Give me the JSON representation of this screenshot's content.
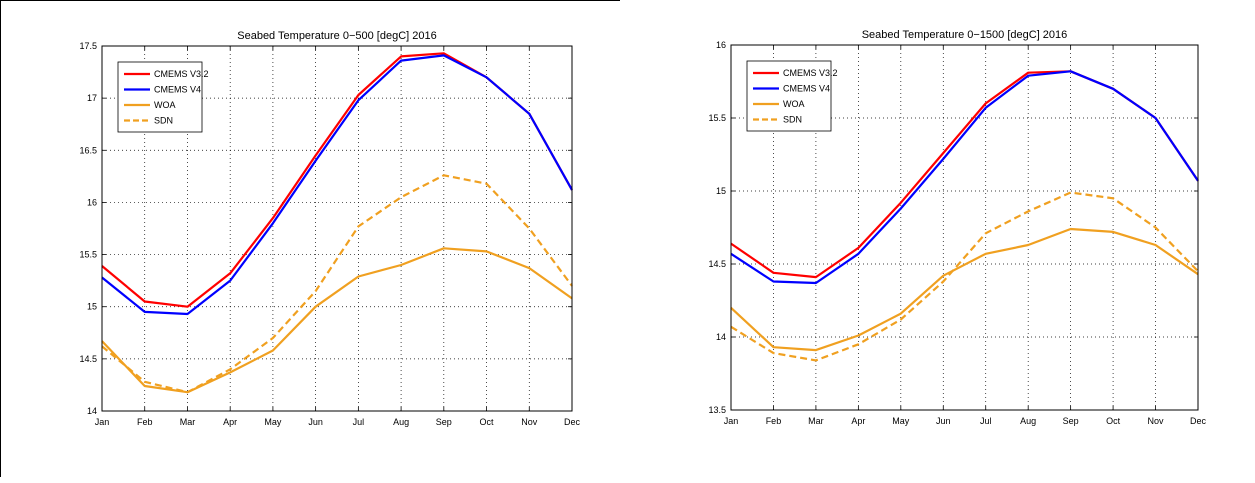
{
  "chart_data": [
    {
      "type": "line",
      "title": "Seabed Temperature 0−500 [degC] 2016",
      "categories": [
        "Jan",
        "Feb",
        "Mar",
        "Apr",
        "May",
        "Jun",
        "Jul",
        "Aug",
        "Sep",
        "Oct",
        "Nov",
        "Dec"
      ],
      "ylim": [
        14,
        17.5
      ],
      "yticks": [
        14,
        14.5,
        15,
        15.5,
        16,
        16.5,
        17,
        17.5
      ],
      "ytick_labels": [
        "14",
        "14.5",
        "15",
        "15.5",
        "16",
        "16.5",
        "17",
        "17.5"
      ],
      "grid": true,
      "legend_position": "top-left",
      "series": [
        {
          "name": "CMEMS V3.2",
          "color": "#ff0000",
          "dash": "solid",
          "values": [
            15.39,
            15.05,
            15.0,
            15.32,
            15.85,
            16.45,
            17.03,
            17.4,
            17.43,
            17.2,
            16.85,
            16.12
          ]
        },
        {
          "name": "CMEMS V4",
          "color": "#0000ff",
          "dash": "solid",
          "values": [
            15.28,
            14.95,
            14.93,
            15.25,
            15.8,
            16.4,
            16.98,
            17.36,
            17.41,
            17.2,
            16.85,
            16.12
          ]
        },
        {
          "name": "WOA",
          "color": "#f0a020",
          "dash": "solid",
          "values": [
            14.67,
            14.24,
            14.18,
            14.37,
            14.58,
            15.0,
            15.29,
            15.4,
            15.56,
            15.53,
            15.37,
            15.08
          ]
        },
        {
          "name": "SDN",
          "color": "#f0a020",
          "dash": "dashed",
          "values": [
            14.62,
            14.28,
            14.18,
            14.4,
            14.7,
            15.15,
            15.77,
            16.05,
            16.26,
            16.18,
            15.75,
            15.2
          ]
        }
      ]
    },
    {
      "type": "line",
      "title": "Seabed Temperature 0−1500 [degC] 2016",
      "categories": [
        "Jan",
        "Feb",
        "Mar",
        "Apr",
        "May",
        "Jun",
        "Jul",
        "Aug",
        "Sep",
        "Oct",
        "Nov",
        "Dec"
      ],
      "ylim": [
        13.5,
        16
      ],
      "yticks": [
        13.5,
        14,
        14.5,
        15,
        15.5,
        16
      ],
      "ytick_labels": [
        "13.5",
        "14",
        "14.5",
        "15",
        "15.5",
        "16"
      ],
      "grid": true,
      "legend_position": "top-left",
      "series": [
        {
          "name": "CMEMS V3.2",
          "color": "#ff0000",
          "dash": "solid",
          "values": [
            14.64,
            14.44,
            14.41,
            14.61,
            14.92,
            15.26,
            15.6,
            15.81,
            15.82,
            15.7,
            15.5,
            15.07
          ]
        },
        {
          "name": "CMEMS V4",
          "color": "#0000ff",
          "dash": "solid",
          "values": [
            14.57,
            14.38,
            14.37,
            14.57,
            14.88,
            15.22,
            15.57,
            15.79,
            15.82,
            15.7,
            15.5,
            15.07
          ]
        },
        {
          "name": "WOA",
          "color": "#f0a020",
          "dash": "solid",
          "values": [
            14.2,
            13.93,
            13.91,
            14.01,
            14.16,
            14.42,
            14.57,
            14.63,
            14.74,
            14.72,
            14.63,
            14.43
          ]
        },
        {
          "name": "SDN",
          "color": "#f0a020",
          "dash": "dashed",
          "values": [
            14.07,
            13.89,
            13.84,
            13.95,
            14.12,
            14.38,
            14.71,
            14.86,
            14.99,
            14.95,
            14.75,
            14.45
          ]
        }
      ]
    }
  ]
}
